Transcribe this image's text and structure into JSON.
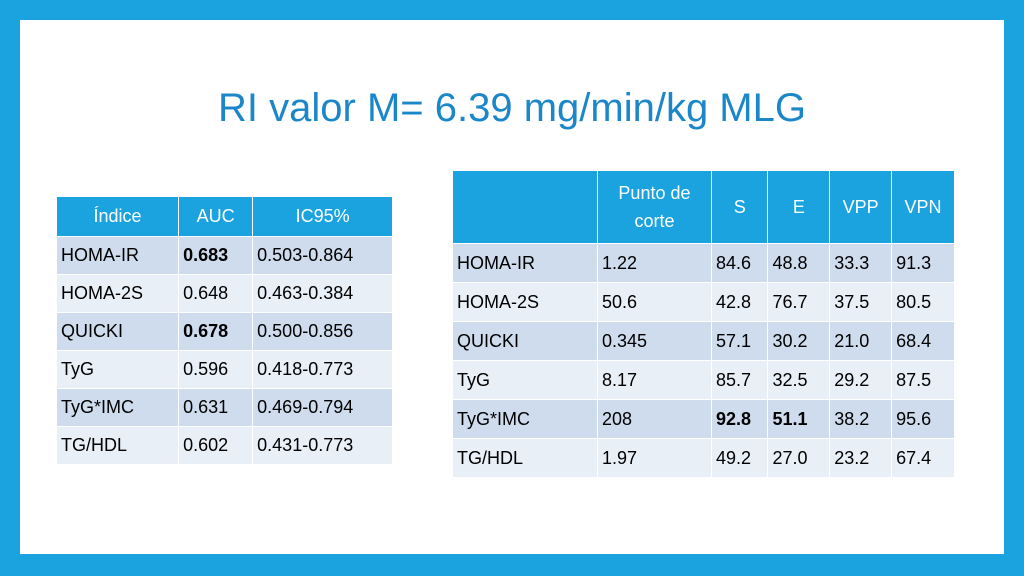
{
  "title": "RI valor M= 6.39 mg/min/kg MLG",
  "table1": {
    "headers": [
      "Índice",
      "AUC",
      "IC95%"
    ],
    "rows": [
      [
        "HOMA-IR",
        "0.683",
        "0.503-0.864"
      ],
      [
        "HOMA-2S",
        "0.648",
        "0.463-0.384"
      ],
      [
        "QUICKI",
        "0.678",
        "0.500-0.856"
      ],
      [
        "TyG",
        "0.596",
        "0.418-0.773"
      ],
      [
        "TyG*IMC",
        "0.631",
        "0.469-0.794"
      ],
      [
        "TG/HDL",
        "0.602",
        "0.431-0.773"
      ]
    ]
  },
  "table2": {
    "headers": [
      "",
      "Punto de corte",
      "S",
      "E",
      "VPP",
      "VPN"
    ],
    "rows": [
      [
        "HOMA-IR",
        "1.22",
        "84.6",
        "48.8",
        "33.3",
        "91.3"
      ],
      [
        "HOMA-2S",
        "50.6",
        "42.8",
        "76.7",
        "37.5",
        "80.5"
      ],
      [
        "QUICKI",
        "0.345",
        "57.1",
        "30.2",
        "21.0",
        "68.4"
      ],
      [
        "TyG",
        "8.17",
        "85.7",
        "32.5",
        "29.2",
        "87.5"
      ],
      [
        "TyG*IMC",
        "208",
        "92.8",
        "51.1",
        "38.2",
        "95.6"
      ],
      [
        "TG/HDL",
        "1.97",
        "49.2",
        "27.0",
        "23.2",
        "67.4"
      ]
    ]
  },
  "colors": {
    "frame": "#1ba3e0",
    "title": "#1b87c9",
    "header": "#1ba3e0",
    "row_dark": "#cfdcee",
    "row_light": "#e9eff7"
  }
}
